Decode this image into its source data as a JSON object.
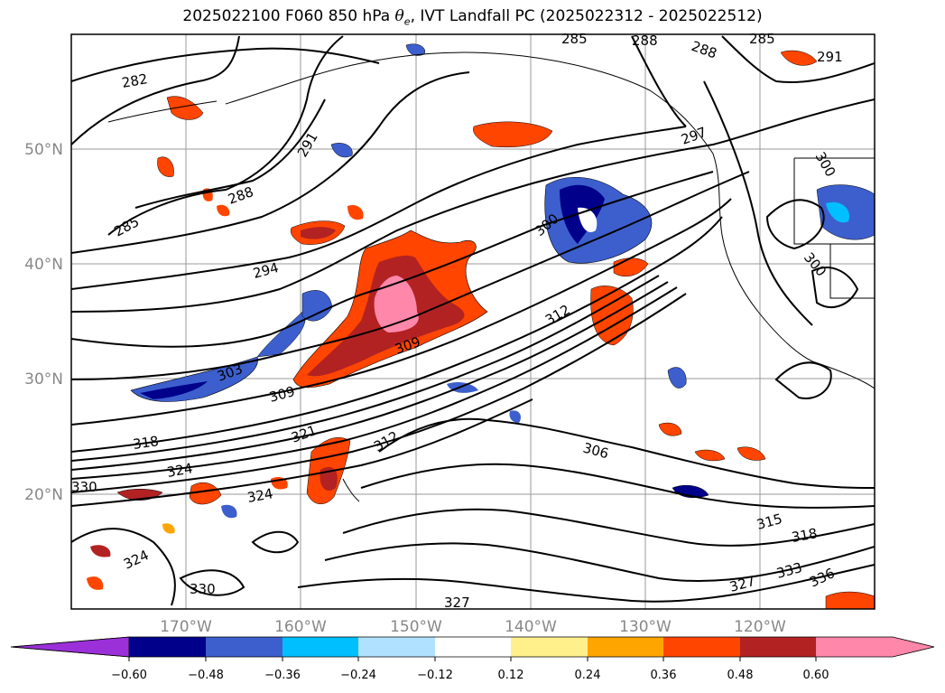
{
  "title": {
    "prefix": "2025022100 F060 850 hPa ",
    "symbol": "θ",
    "symbol_sub": "e",
    "suffix": ", IVT Landfall PC (2025022312 - 2025022512)"
  },
  "map": {
    "lat_labels": [
      "50°N",
      "40°N",
      "30°N",
      "20°N"
    ],
    "lon_labels": [
      "170°W",
      "160°W",
      "150°W",
      "140°W",
      "130°W",
      "120°W"
    ],
    "contour_labels": [
      "282",
      "285",
      "288",
      "288",
      "285",
      "291",
      "291",
      "288",
      "285",
      "294",
      "297",
      "300",
      "300",
      "303",
      "306",
      "309",
      "309",
      "312",
      "312",
      "315",
      "318",
      "318",
      "321",
      "324",
      "324",
      "324",
      "327",
      "327",
      "330",
      "330",
      "333",
      "336",
      "300"
    ]
  },
  "colorbar": {
    "ticks": [
      "−0.60",
      "−0.48",
      "−0.36",
      "−0.24",
      "−0.12",
      "0.12",
      "0.24",
      "0.36",
      "0.48",
      "0.60"
    ],
    "colors": [
      "#9b30d9",
      "#00008b",
      "#3c5fcd",
      "#00bfff",
      "#b0e2ff",
      "#ffffff",
      "#fff08c",
      "#ffa500",
      "#ff4500",
      "#b22222",
      "#ff88aa",
      "#ff88aa"
    ]
  }
}
